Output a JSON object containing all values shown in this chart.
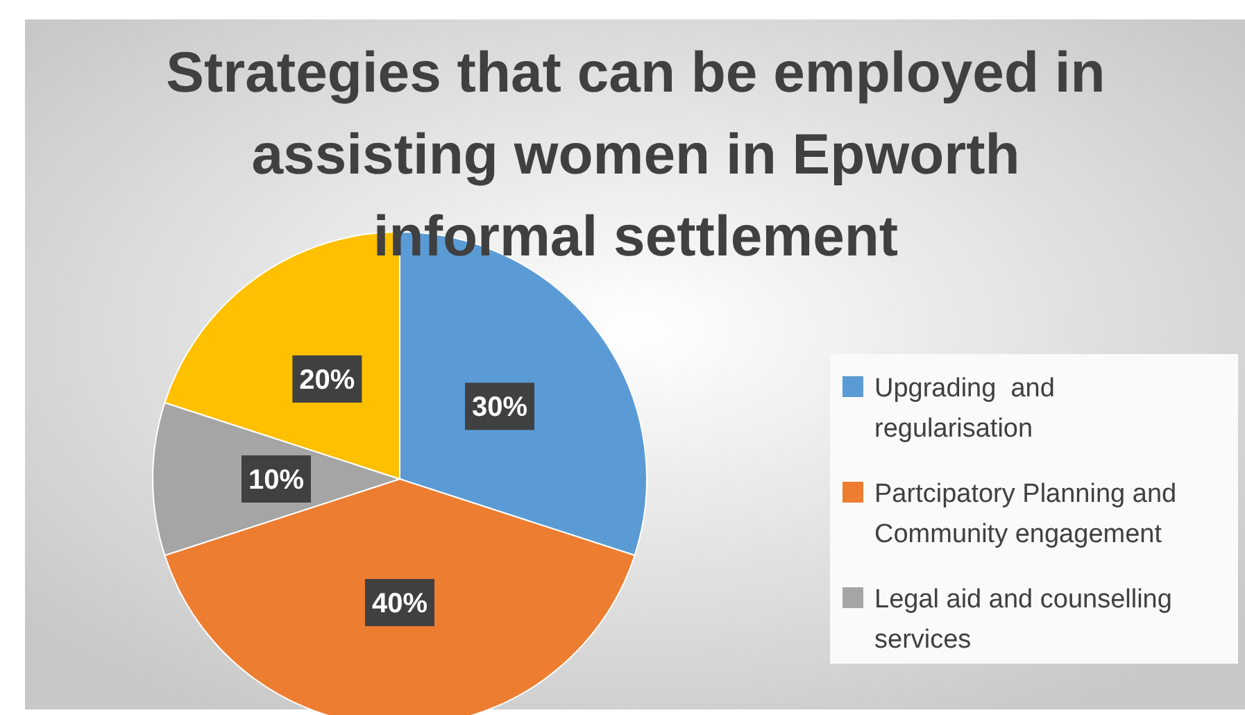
{
  "chart_data": {
    "type": "pie",
    "title": "Strategies that can be employed in assisting women in Epworth informal settlement",
    "categories": [
      "Upgrading  and regularisation",
      "Partcipatory Planning and Community engagement",
      "Legal aid and counselling services",
      null
    ],
    "values": [
      30,
      40,
      10,
      20
    ],
    "colors": [
      "#5b9bd5",
      "#ed7d31",
      "#a5a5a5",
      "#ffc000"
    ],
    "value_labels": [
      "30%",
      "40%",
      "10%",
      "20%"
    ],
    "legend": "right"
  }
}
